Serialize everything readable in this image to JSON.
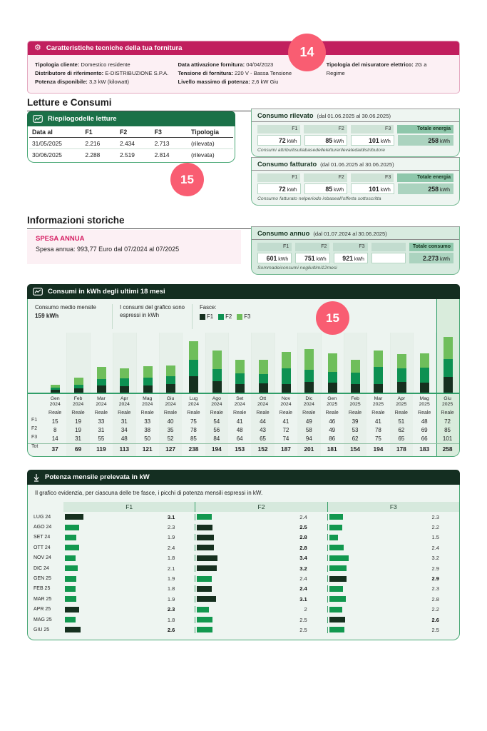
{
  "badges": {
    "fourteen": "14",
    "fifteen": "15"
  },
  "tech_box": {
    "title": "Caratteristiche tecniche della tua fornitura",
    "columns": [
      [
        {
          "label": "Tipologia cliente:",
          "value": "Domestico residente"
        },
        {
          "label": "Distributore di riferimento:",
          "value": "E-DISTRIBUZIONE S.P.A."
        },
        {
          "label": "Potenza disponibile:",
          "value": "3,3 kW (kilowatt)"
        }
      ],
      [
        {
          "label": "Data attivazione fornitura:",
          "value": "04/04/2023"
        },
        {
          "label": "Tensione di fornitura:",
          "value": "220 V - Bassa Tensione"
        },
        {
          "label": "Livello massimo di potenza:",
          "value": "2,6 kW Giu"
        }
      ],
      [
        {
          "label": "Tipologia del misuratore elettrico:",
          "value": "2G a Regime"
        }
      ]
    ]
  },
  "section_headings": {
    "letture": "Letture e Consumi",
    "storiche": "Informazioni storiche"
  },
  "letture_table": {
    "title": "Riepilogodelle letture",
    "columns": [
      "Data al",
      "F1",
      "F2",
      "F3",
      "Tipologia"
    ],
    "rows": [
      [
        "31/05/2025",
        "2.216",
        "2.434",
        "2.713",
        "(rilevata)"
      ],
      [
        "30/06/2025",
        "2.288",
        "2.519",
        "2.814",
        "(rilevata)"
      ]
    ]
  },
  "consumo_boxes": {
    "rilevato": {
      "title": "Consumo rilevato",
      "period": "(dal 01.06.2025 al 30.06.2025)",
      "cells": [
        {
          "label": "F1",
          "value": "72",
          "unit": "kWh"
        },
        {
          "label": "F2",
          "value": "85",
          "unit": "kWh"
        },
        {
          "label": "F3",
          "value": "101",
          "unit": "kWh"
        }
      ],
      "total": {
        "label": "Totale energia",
        "value": "258",
        "unit": "kWh"
      },
      "note": "Consumi attribuitisullabasedelleletturerilevatedaldistributore"
    },
    "fatturato": {
      "title": "Consumo fatturato",
      "period": "(dal 01.06.2025 al 30.06.2025)",
      "cells": [
        {
          "label": "F1",
          "value": "72",
          "unit": "kWh"
        },
        {
          "label": "F2",
          "value": "85",
          "unit": "kWh"
        },
        {
          "label": "F3",
          "value": "101",
          "unit": "kWh"
        }
      ],
      "total": {
        "label": "Totale energia",
        "value": "258",
        "unit": "kWh"
      },
      "note": "Consumo fatturato nelperiodo inbaseall'offerta sottoscritta"
    },
    "annuo": {
      "title": "Consumo annuo",
      "period": "(dal 01.07.2024 al 30.06.2025)",
      "cells": [
        {
          "label": "F1",
          "value": "601",
          "unit": "kWh"
        },
        {
          "label": "F2",
          "value": "751",
          "unit": "kWh"
        },
        {
          "label": "F3",
          "value": "921",
          "unit": "kWh"
        },
        {
          "label": "",
          "value": "",
          "unit": ""
        }
      ],
      "total": {
        "label": "Totale consumo",
        "value": "2.273",
        "unit": "kWh"
      },
      "note": "Sommadeiconsumi negliultimi12mesi"
    }
  },
  "spesa_annua": {
    "title": "SPESA ANNUA",
    "text": "Spesa annua: 993,77 Euro dal 07/2024 al 07/2025"
  },
  "chart_data": [
    {
      "type": "bar",
      "stacked": true,
      "title": "Consumi in kWh degli ultimi 18 mesi",
      "avg_label": "Consumo medio mensile",
      "avg_value": "159 kWh",
      "unit_note": "I consumi del grafico sono espressi in kWh",
      "legend_title": "Fasce:",
      "legend_position": "top",
      "grid": false,
      "legend": [
        {
          "name": "F1",
          "color": "#16301f"
        },
        {
          "name": "F2",
          "color": "#0d9152"
        },
        {
          "name": "F3",
          "color": "#6fbe5b"
        }
      ],
      "categories": [
        "Gen 2024",
        "Feb 2024",
        "Mar 2024",
        "Apr 2024",
        "Mag 2024",
        "Giu 2024",
        "Lug 2024",
        "Ago 2024",
        "Set 2024",
        "Ott 2024",
        "Nov 2024",
        "Dic 2024",
        "Gen 2025",
        "Feb 2025",
        "Mar 2025",
        "Apr 2025",
        "Mag 2025",
        "Giu 2025"
      ],
      "reading_label": "Reale",
      "series": [
        {
          "name": "F1",
          "values": [
            15,
            19,
            33,
            31,
            33,
            40,
            75,
            54,
            41,
            44,
            41,
            49,
            46,
            39,
            41,
            51,
            48,
            72
          ]
        },
        {
          "name": "F2",
          "values": [
            8,
            19,
            31,
            34,
            38,
            35,
            78,
            56,
            48,
            43,
            72,
            58,
            49,
            53,
            78,
            62,
            69,
            85
          ]
        },
        {
          "name": "F3",
          "values": [
            14,
            31,
            55,
            48,
            50,
            52,
            85,
            84,
            64,
            65,
            74,
            94,
            86,
            62,
            75,
            65,
            66,
            101
          ]
        }
      ],
      "totals": [
        37,
        69,
        119,
        113,
        121,
        127,
        238,
        194,
        153,
        152,
        187,
        201,
        181,
        154,
        194,
        178,
        183,
        258
      ],
      "total_label": "Tot",
      "ylim": [
        0,
        258
      ],
      "highlight_last_column": true
    },
    {
      "type": "bar",
      "orientation": "horizontal",
      "title": "Potenza mensile prelevata in kW",
      "subtitle": "Il grafico evidenzia, per ciascuna delle tre fasce, i picchi di potenza mensili espressi in kW.",
      "categories": [
        "LUG 24",
        "AGO 24",
        "SET 24",
        "OTT 24",
        "NOV 24",
        "DIC 24",
        "GEN 25",
        "FEB 25",
        "MAR 25",
        "APR 25",
        "MAG 25",
        "GIU 25"
      ],
      "series": [
        {
          "name": "F1",
          "values": [
            3.1,
            2.3,
            1.9,
            2.4,
            1.8,
            2.1,
            1.9,
            1.8,
            1.9,
            2.3,
            1.8,
            2.6
          ]
        },
        {
          "name": "F2",
          "values": [
            2.4,
            2.5,
            2.8,
            2.8,
            3.4,
            3.2,
            2.4,
            2.4,
            3.1,
            2,
            2.5,
            2.5
          ]
        },
        {
          "name": "F3",
          "values": [
            2.3,
            2.2,
            1.5,
            2.4,
            3.2,
            2.9,
            2.9,
            2.3,
            2.8,
            2.2,
            2.6,
            2.5
          ]
        }
      ],
      "max_highlighted": true,
      "xlim": [
        0,
        3.4
      ],
      "bar_color": "#12984f",
      "max_bar_color": "#16301f"
    }
  ],
  "colors": {
    "magenta_header": "#c11f5e",
    "pink_badge": "#f95d72",
    "pink_bg": "#fcf0f4",
    "green_header": "#1b7148",
    "dark_green_header": "#142e21",
    "box_bg": "#eef5f1",
    "chip_bg": "#cfe3d7",
    "total_chip_bg": "#8ec7ab",
    "border_green": "#2f9e68"
  }
}
